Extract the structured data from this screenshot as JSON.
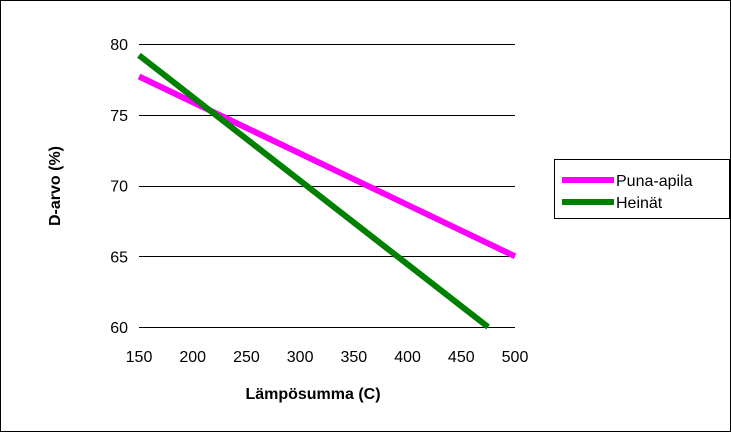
{
  "chart_data": {
    "type": "line",
    "title": "",
    "xlabel": "Lämpösumma (C)",
    "ylabel": "D-arvo (%)",
    "xlim": [
      150,
      500
    ],
    "ylim": [
      60,
      80
    ],
    "xticks": [
      "150",
      "200",
      "250",
      "300",
      "350",
      "400",
      "450",
      "500"
    ],
    "yticks": [
      "60",
      "65",
      "70",
      "75",
      "80"
    ],
    "grid": "horizontal",
    "legend_position": "right",
    "series": [
      {
        "name": "Puna-apila",
        "color": "#ff00ff",
        "x": [
          150,
          500
        ],
        "y": [
          77.7,
          65.0
        ]
      },
      {
        "name": "Heinät",
        "color": "#008000",
        "x": [
          150,
          475
        ],
        "y": [
          79.2,
          60.0
        ]
      }
    ]
  }
}
